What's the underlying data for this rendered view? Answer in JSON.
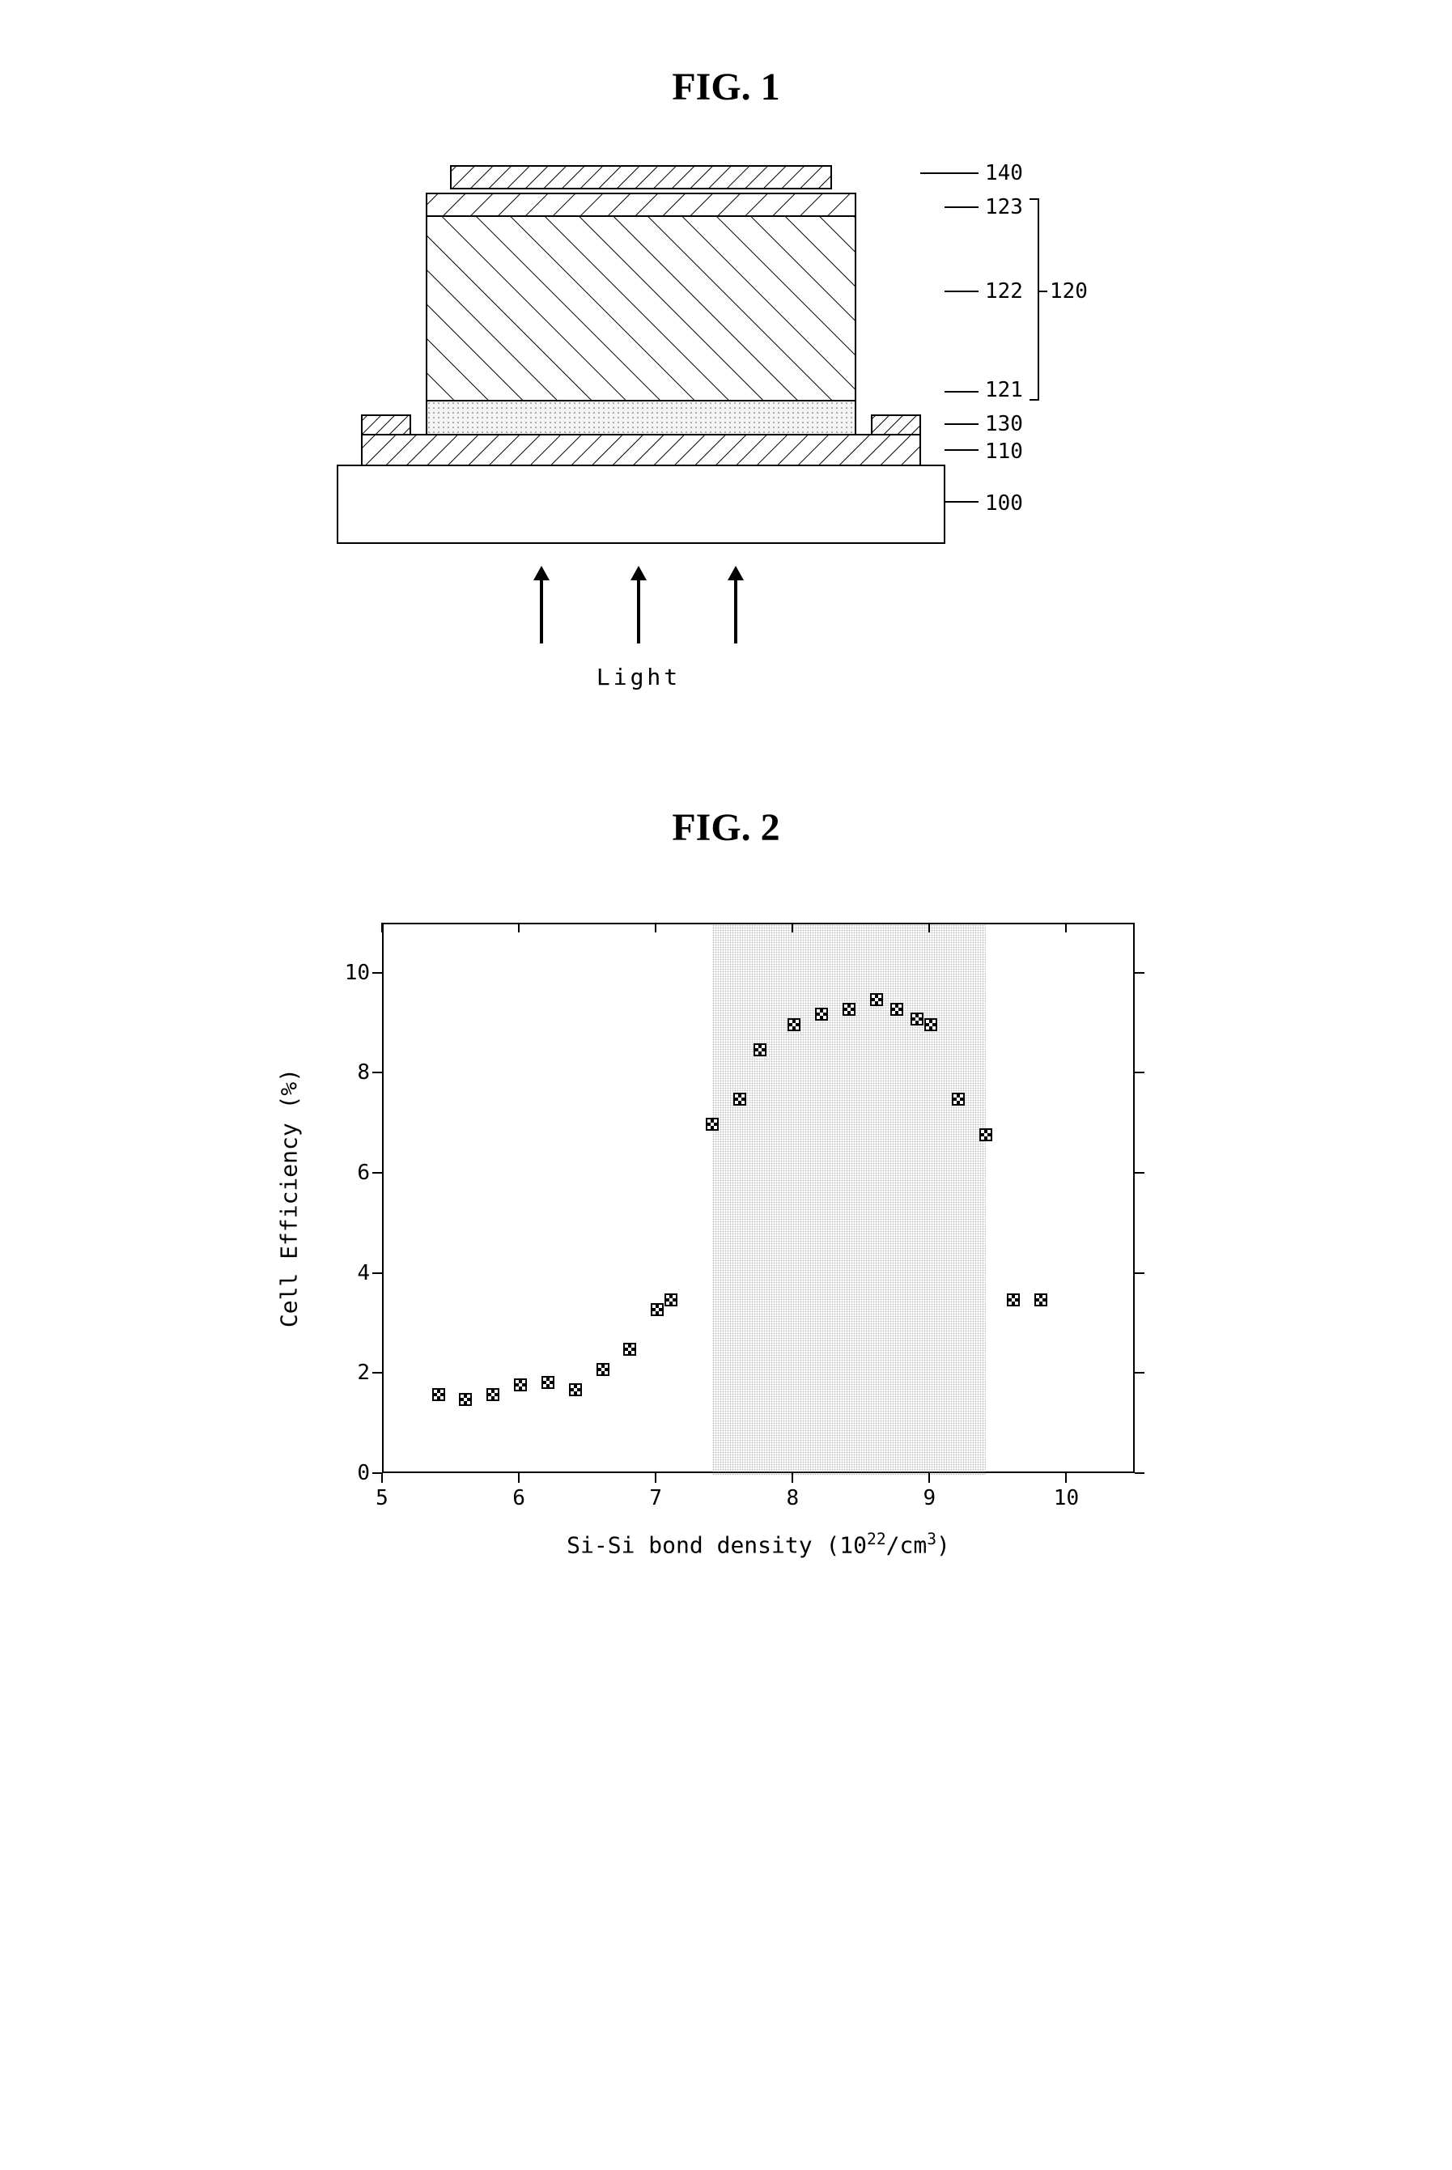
{
  "figure1": {
    "title": "FIG. 1",
    "light_label": "Light",
    "labels": {
      "l100": "100",
      "l110": "110",
      "l120": "120",
      "l121": "121",
      "l122": "122",
      "l123": "123",
      "l130": "130",
      "l140": "140"
    },
    "colors": {
      "substrate": "#ffffff",
      "layer110_fill": "#ffffff",
      "layer121_dotfill": "#f4f4f4",
      "layer122_fill": "#ffffff",
      "layer123_fill": "#ffffff",
      "layer130_fill": "#ffffff",
      "layer140_fill": "#ffffff",
      "line": "#000000"
    },
    "hatch_angles": {
      "l110": 45,
      "l122": 135,
      "l123": 45,
      "l130": 45,
      "l140": 45
    }
  },
  "figure2": {
    "title": "FIG. 2",
    "x_label_pre": "Si-Si bond density (10",
    "x_label_sup": "22",
    "x_label_post": "/cm",
    "x_label_sup2": "3",
    "x_label_end": ")",
    "y_label": "Cell Efficiency (%)",
    "xlim": [
      5,
      10.5
    ],
    "ylim": [
      0,
      11
    ],
    "xticks": [
      5,
      6,
      7,
      8,
      9,
      10
    ],
    "yticks": [
      0,
      2,
      4,
      6,
      8,
      10
    ],
    "shaded_x": [
      7.4,
      9.4
    ],
    "marker_color": "#000000",
    "background": "#ffffff",
    "data": [
      {
        "x": 5.4,
        "y": 1.6
      },
      {
        "x": 5.6,
        "y": 1.5
      },
      {
        "x": 5.8,
        "y": 1.6
      },
      {
        "x": 6.0,
        "y": 1.8
      },
      {
        "x": 6.2,
        "y": 1.85
      },
      {
        "x": 6.4,
        "y": 1.7
      },
      {
        "x": 6.6,
        "y": 2.1
      },
      {
        "x": 6.8,
        "y": 2.5
      },
      {
        "x": 7.0,
        "y": 3.3
      },
      {
        "x": 7.1,
        "y": 3.5
      },
      {
        "x": 7.4,
        "y": 7.0
      },
      {
        "x": 7.6,
        "y": 7.5
      },
      {
        "x": 7.75,
        "y": 8.5
      },
      {
        "x": 8.0,
        "y": 9.0
      },
      {
        "x": 8.2,
        "y": 9.2
      },
      {
        "x": 8.4,
        "y": 9.3
      },
      {
        "x": 8.6,
        "y": 9.5
      },
      {
        "x": 8.75,
        "y": 9.3
      },
      {
        "x": 8.9,
        "y": 9.1
      },
      {
        "x": 9.0,
        "y": 9.0
      },
      {
        "x": 9.2,
        "y": 7.5
      },
      {
        "x": 9.4,
        "y": 6.8
      },
      {
        "x": 9.6,
        "y": 3.5
      },
      {
        "x": 9.8,
        "y": 3.5
      }
    ]
  }
}
